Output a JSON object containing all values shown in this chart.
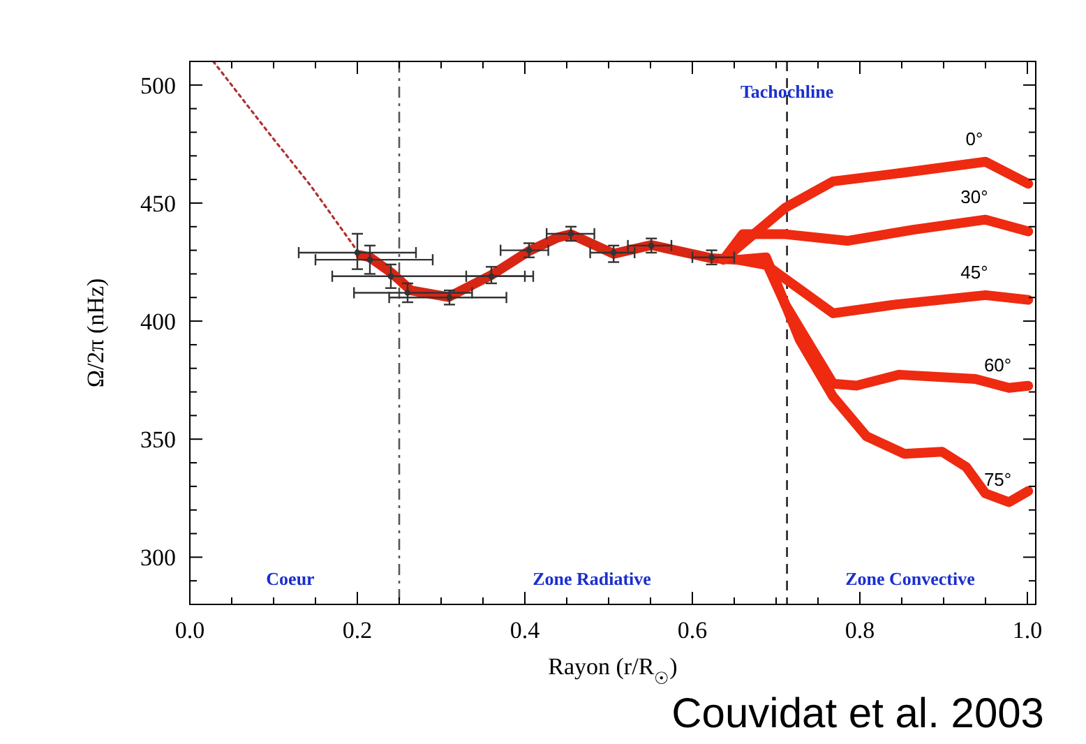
{
  "chart_data": {
    "type": "line",
    "xlabel": "Rayon (r/R$_{☉}$)",
    "ylabel": "Ω/2π (nHz)",
    "xlim": [
      0,
      1.01
    ],
    "ylim": [
      280,
      510
    ],
    "xticks": [
      {
        "value": 0,
        "label": "0.0"
      },
      {
        "value": 0.05,
        "label": null
      },
      {
        "value": 0.1,
        "label": null
      },
      {
        "value": 0.15,
        "label": null
      },
      {
        "value": 0.2,
        "label": "0.2"
      },
      {
        "value": 0.25,
        "label": null
      },
      {
        "value": 0.3,
        "label": null
      },
      {
        "value": 0.35,
        "label": null
      },
      {
        "value": 0.4,
        "label": "0.4"
      },
      {
        "value": 0.45,
        "label": null
      },
      {
        "value": 0.5,
        "label": null
      },
      {
        "value": 0.55,
        "label": null
      },
      {
        "value": 0.6,
        "label": "0.6"
      },
      {
        "value": 0.65,
        "label": null
      },
      {
        "value": 0.7,
        "label": null
      },
      {
        "value": 0.75,
        "label": null
      },
      {
        "value": 0.8,
        "label": "0.8"
      },
      {
        "value": 0.85,
        "label": null
      },
      {
        "value": 0.9,
        "label": null
      },
      {
        "value": 0.95,
        "label": null
      },
      {
        "value": 1.0,
        "label": "1.0"
      }
    ],
    "yticks": [
      {
        "value": 290,
        "label": null
      },
      300,
      {
        "value": 310,
        "label": null
      },
      {
        "value": 320,
        "label": null
      },
      {
        "value": 330,
        "label": null
      },
      {
        "value": 340,
        "label": null
      },
      350,
      {
        "value": 360,
        "label": null
      },
      {
        "value": 370,
        "label": null
      },
      {
        "value": 380,
        "label": null
      },
      {
        "value": 390,
        "label": null
      },
      400,
      {
        "value": 410,
        "label": null
      },
      {
        "value": 420,
        "label": null
      },
      {
        "value": 430,
        "label": null
      },
      {
        "value": 440,
        "label": null
      },
      450,
      {
        "value": 460,
        "label": null
      },
      {
        "value": 470,
        "label": null
      },
      {
        "value": 480,
        "label": null
      },
      {
        "value": 490,
        "label": null
      },
      500
    ],
    "series": [
      {
        "color": "#b03030",
        "line_style": "dotted",
        "x": [
          0.028,
          0.094,
          0.144,
          0.2
        ],
        "values": [
          510,
          479.8,
          457.5,
          429.7
        ]
      },
      {
        "color": "#d82614",
        "x": [
          0.204,
          0.215,
          0.241,
          0.264,
          0.309,
          0.36,
          0.405,
          0.439,
          0.455,
          0.506,
          0.551,
          0.623,
          0.654
        ],
        "values": [
          427.9,
          427,
          420.4,
          413,
          410.2,
          419.5,
          429.7,
          435.4,
          436.8,
          428.5,
          432.2,
          426.6,
          426
        ]
      },
      {
        "name": "0°",
        "color": "#ee2a10",
        "x": [
          0.637,
          0.711,
          0.768,
          0.853,
          0.95,
          1.001
        ],
        "values": [
          426,
          448,
          459.2,
          462.9,
          467.5,
          458.2
        ]
      },
      {
        "name": "30°",
        "color": "#ee2a10",
        "x": [
          0.637,
          0.66,
          0.711,
          0.785,
          0.864,
          0.95,
          1.001
        ],
        "values": [
          426,
          436.8,
          436.8,
          434,
          438.7,
          443,
          438
        ]
      },
      {
        "name": "45°",
        "color": "#ee2a10",
        "x": [
          0.654,
          0.688,
          0.768,
          0.842,
          0.95,
          1.001
        ],
        "values": [
          426,
          423.8,
          403.3,
          407,
          411,
          409
        ]
      },
      {
        "name": "60°",
        "color": "#ee2a10",
        "x": [
          0.654,
          0.688,
          0.711,
          0.768,
          0.796,
          0.847,
          0.938,
          0.978,
          1.001
        ],
        "values": [
          426,
          425,
          407,
          373.5,
          372.7,
          377.3,
          375.5,
          371.7,
          372.6
        ]
      },
      {
        "name": "75°",
        "color": "#ee2a10",
        "x": [
          0.654,
          0.688,
          0.728,
          0.768,
          0.808,
          0.853,
          0.898,
          0.927,
          0.95,
          0.978,
          1.001
        ],
        "values": [
          426,
          427,
          392.2,
          368,
          351.2,
          343.8,
          344.7,
          338.2,
          327,
          323.3,
          328
        ]
      },
      {
        "type": "scatter",
        "marker": "circle",
        "color": "#333333",
        "x": [
          0.2,
          0.215,
          0.24,
          0.26,
          0.31,
          0.36,
          0.405,
          0.455,
          0.506,
          0.551,
          0.623
        ],
        "values": [
          429,
          426,
          419,
          412,
          410,
          419,
          430,
          437,
          429,
          432,
          427
        ],
        "errors": [
          [
            422,
            437
          ],
          [
            420,
            432
          ],
          [
            414,
            424
          ],
          [
            408,
            416
          ],
          [
            407,
            413
          ],
          [
            416,
            423
          ],
          [
            427,
            433
          ],
          [
            434,
            440
          ],
          [
            425,
            432
          ],
          [
            429,
            435
          ],
          [
            424,
            430
          ]
        ],
        "xerrors": [
          [
            0.13,
            0.27
          ],
          [
            0.15,
            0.29
          ],
          [
            0.17,
            0.41
          ],
          [
            0.196,
            0.337
          ],
          [
            0.238,
            0.378
          ],
          [
            0.33,
            0.4
          ],
          [
            0.371,
            0.428
          ],
          [
            0.426,
            0.483
          ],
          [
            0.478,
            0.531
          ],
          [
            0.523,
            0.575
          ],
          [
            0.6,
            0.65
          ]
        ]
      }
    ],
    "ref_lines": [
      {
        "axis": "x",
        "value": 0.25,
        "line_style": "dashdot",
        "color": "#555555"
      },
      {
        "axis": "x",
        "value": 0.713,
        "line_style": "dashed",
        "color": "#222222",
        "label": "Tachochline"
      }
    ],
    "annotations": [
      "Coeur",
      "Zone Radiative",
      "Zone Convective",
      "Couvidat et al. 2003"
    ]
  }
}
